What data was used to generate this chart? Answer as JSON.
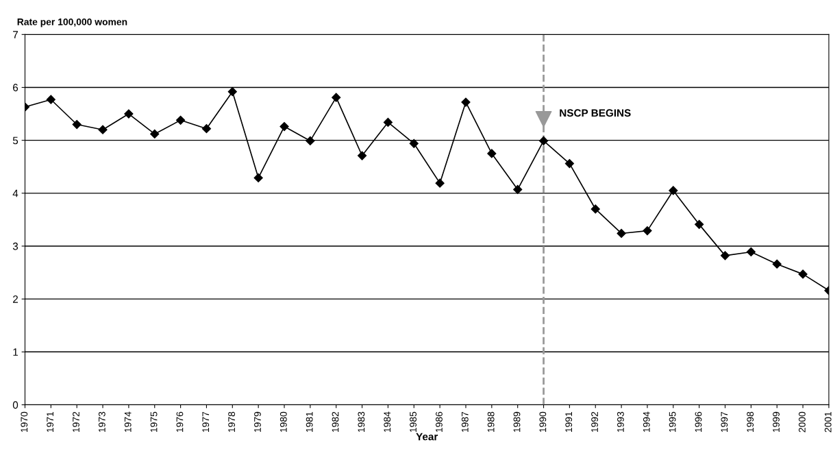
{
  "chart_data": {
    "type": "line",
    "ylabel": "Rate per 100,000 women",
    "xlabel": "Year",
    "categories": [
      "1970",
      "1971",
      "1972",
      "1973",
      "1974",
      "1975",
      "1976",
      "1977",
      "1978",
      "1979",
      "1980",
      "1981",
      "1982",
      "1983",
      "1984",
      "1985",
      "1986",
      "1987",
      "1988",
      "1989",
      "1990",
      "1991",
      "1992",
      "1993",
      "1994",
      "1995",
      "1996",
      "1997",
      "1998",
      "1999",
      "2000",
      "2001"
    ],
    "series": [
      {
        "color": "#000000",
        "values": [
          5.63,
          5.77,
          5.3,
          5.2,
          5.5,
          5.12,
          5.38,
          5.22,
          5.92,
          4.29,
          5.26,
          4.99,
          5.81,
          4.71,
          5.34,
          4.94,
          4.19,
          5.72,
          4.75,
          4.07,
          4.99,
          4.56,
          3.7,
          3.24,
          3.29,
          4.05,
          3.41,
          2.82,
          2.89,
          2.66,
          2.47,
          2.16
        ]
      }
    ],
    "ylim": [
      0,
      7
    ],
    "yticks": [
      0,
      1,
      2,
      3,
      4,
      5,
      6,
      7
    ],
    "grid": "y",
    "marker": "diamond",
    "line_style": "solid",
    "ref_lines": [
      {
        "axis": "x",
        "value": "1990",
        "label": "NSCP BEGINS",
        "color": "#999999",
        "line_style": "dashed"
      }
    ]
  }
}
